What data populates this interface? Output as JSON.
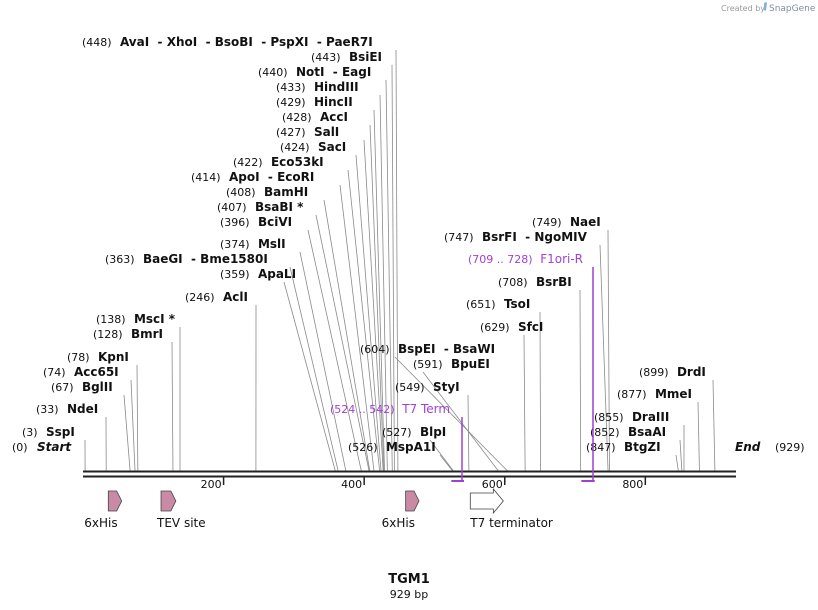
{
  "header": {
    "credit_prefix": "Created by",
    "brand": "SnapGene",
    "logo_icon": "snapgene-logo-icon"
  },
  "sequence": {
    "name": "TGM1",
    "length_label": "929 bp",
    "length": 929,
    "start_label": "Start",
    "start_pos": "(0)",
    "end_label": "End",
    "end_pos": "(929)",
    "ticks": [
      200,
      400,
      600,
      800
    ]
  },
  "sites": [
    {
      "pos": "(448)",
      "names": [
        "AvaI",
        "XhoI",
        "BsoBI",
        "PspXI",
        "PaeR7I"
      ],
      "loc": 448
    },
    {
      "pos": "(443)",
      "names": [
        "BsiEI"
      ],
      "loc": 443
    },
    {
      "pos": "(440)",
      "names": [
        "NotI",
        "EagI"
      ],
      "loc": 440
    },
    {
      "pos": "(433)",
      "names": [
        "HindIII"
      ],
      "loc": 433
    },
    {
      "pos": "(429)",
      "names": [
        "HincII"
      ],
      "loc": 429
    },
    {
      "pos": "(428)",
      "names": [
        "AccI"
      ],
      "loc": 428
    },
    {
      "pos": "(427)",
      "names": [
        "SalI"
      ],
      "loc": 427
    },
    {
      "pos": "(424)",
      "names": [
        "SacI"
      ],
      "loc": 424
    },
    {
      "pos": "(422)",
      "names": [
        "Eco53kI"
      ],
      "loc": 422
    },
    {
      "pos": "(414)",
      "names": [
        "ApoI",
        "EcoRI"
      ],
      "loc": 414
    },
    {
      "pos": "(408)",
      "names": [
        "BamHI"
      ],
      "loc": 408
    },
    {
      "pos": "(407)",
      "names": [
        "BsaBI *"
      ],
      "loc": 407
    },
    {
      "pos": "(396)",
      "names": [
        "BciVI"
      ],
      "loc": 396
    },
    {
      "pos": "(374)",
      "names": [
        "MslI"
      ],
      "loc": 374
    },
    {
      "pos": "(363)",
      "names": [
        "BaeGI",
        "Bme1580I"
      ],
      "loc": 363
    },
    {
      "pos": "(359)",
      "names": [
        "ApaLI"
      ],
      "loc": 359
    },
    {
      "pos": "(246)",
      "names": [
        "AclI"
      ],
      "loc": 246
    },
    {
      "pos": "(138)",
      "names": [
        "MscI *"
      ],
      "loc": 138
    },
    {
      "pos": "(128)",
      "names": [
        "BmrI"
      ],
      "loc": 128
    },
    {
      "pos": "(78)",
      "names": [
        "KpnI"
      ],
      "loc": 78
    },
    {
      "pos": "(74)",
      "names": [
        "Acc65I"
      ],
      "loc": 74
    },
    {
      "pos": "(67)",
      "names": [
        "BglII"
      ],
      "loc": 67
    },
    {
      "pos": "(33)",
      "names": [
        "NdeI"
      ],
      "loc": 33
    },
    {
      "pos": "(3)",
      "names": [
        "SspI"
      ],
      "loc": 3
    },
    {
      "pos": "(604)",
      "names": [
        "BspEI",
        "BsaWI"
      ],
      "loc": 604
    },
    {
      "pos": "(591)",
      "names": [
        "BpuEI"
      ],
      "loc": 591
    },
    {
      "pos": "(549)",
      "names": [
        "StyI"
      ],
      "loc": 549
    },
    {
      "pos": "(527)",
      "names": [
        "BlpI"
      ],
      "loc": 527
    },
    {
      "pos": "(526)",
      "names": [
        "MspA1I"
      ],
      "loc": 526
    },
    {
      "pos": "(749)",
      "names": [
        "NaeI"
      ],
      "loc": 749
    },
    {
      "pos": "(747)",
      "names": [
        "BsrFI",
        "NgoMIV"
      ],
      "loc": 747
    },
    {
      "pos": "(708)",
      "names": [
        "BsrBI"
      ],
      "loc": 708
    },
    {
      "pos": "(651)",
      "names": [
        "TsoI"
      ],
      "loc": 651
    },
    {
      "pos": "(629)",
      "names": [
        "SfcI"
      ],
      "loc": 629
    },
    {
      "pos": "(899)",
      "names": [
        "DrdI"
      ],
      "loc": 899
    },
    {
      "pos": "(877)",
      "names": [
        "MmeI"
      ],
      "loc": 877
    },
    {
      "pos": "(855)",
      "names": [
        "DraIII"
      ],
      "loc": 855
    },
    {
      "pos": "(852)",
      "names": [
        "BsaAI"
      ],
      "loc": 852
    },
    {
      "pos": "(847)",
      "names": [
        "BtgZI"
      ],
      "loc": 847
    }
  ],
  "primers": [
    {
      "range": "(524 .. 542)",
      "name": "T7 Term",
      "start": 524,
      "end": 542
    },
    {
      "range": "(709 .. 728)",
      "name": "F1ori-R",
      "start": 709,
      "end": 728
    }
  ],
  "features": [
    {
      "name": "6xHis",
      "start": 36,
      "end": 53,
      "style": "pink"
    },
    {
      "name": "TEV site",
      "start": 111,
      "end": 131,
      "style": "pink"
    },
    {
      "name": "6xHis",
      "start": 459,
      "end": 476,
      "style": "pink"
    },
    {
      "name": "T7 terminator",
      "start": 551,
      "end": 598,
      "style": "white"
    }
  ],
  "colors": {
    "primer": "#a23fd6",
    "feature_pink": "#c98aa6",
    "line": "#888888",
    "backbone": "#222222"
  }
}
